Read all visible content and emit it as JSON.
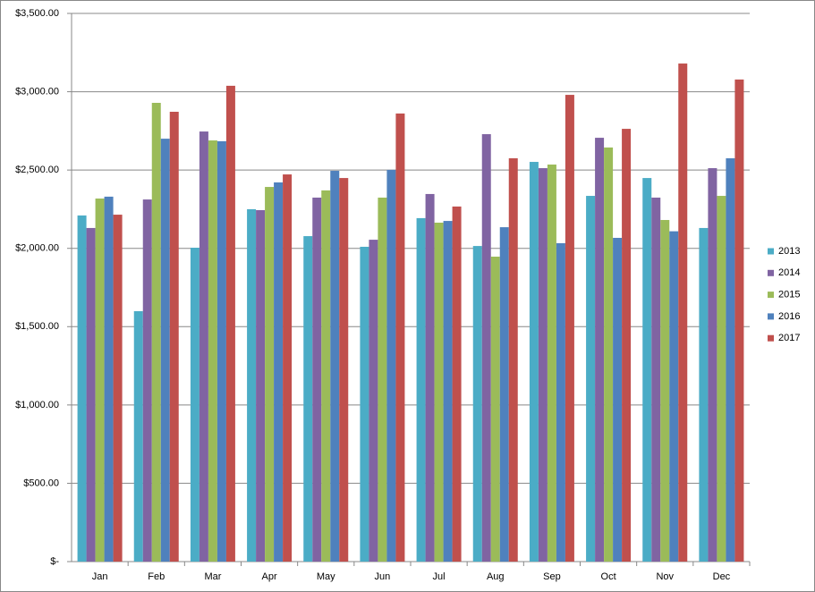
{
  "chart_data": {
    "type": "bar",
    "categories": [
      "Jan",
      "Feb",
      "Mar",
      "Apr",
      "May",
      "Jun",
      "Jul",
      "Aug",
      "Sep",
      "Oct",
      "Nov",
      "Dec"
    ],
    "series": [
      {
        "name": "2013",
        "color": "#4bacc6",
        "values": [
          2210,
          1599,
          2004,
          2250,
          2078,
          2010,
          2193,
          2015,
          2552,
          2335,
          2449,
          2130
        ]
      },
      {
        "name": "2014",
        "color": "#8064a2",
        "values": [
          2130,
          2312,
          2746,
          2244,
          2324,
          2055,
          2347,
          2729,
          2512,
          2706,
          2324,
          2512
        ]
      },
      {
        "name": "2015",
        "color": "#9bbb59",
        "values": [
          2318,
          2929,
          2689,
          2392,
          2370,
          2324,
          2164,
          1947,
          2535,
          2644,
          2181,
          2335
        ]
      },
      {
        "name": "2016",
        "color": "#4f81bd",
        "values": [
          2330,
          2700,
          2684,
          2421,
          2495,
          2501,
          2175,
          2135,
          2033,
          2067,
          2109,
          2575
        ]
      },
      {
        "name": "2017",
        "color": "#c0504d",
        "values": [
          2215,
          2872,
          3038,
          2472,
          2449,
          2861,
          2267,
          2575,
          2980,
          2763,
          3180,
          3078
        ]
      }
    ],
    "ylim": [
      0,
      3500
    ],
    "yticks": [
      {
        "value": 0,
        "label": "$-"
      },
      {
        "value": 500,
        "label": "$500.00"
      },
      {
        "value": 1000,
        "label": "$1,000.00"
      },
      {
        "value": 1500,
        "label": "$1,500.00"
      },
      {
        "value": 2000,
        "label": "$2,000.00"
      },
      {
        "value": 2500,
        "label": "$2,500.00"
      },
      {
        "value": 3000,
        "label": "$3,000.00"
      },
      {
        "value": 3500,
        "label": "$3,500.00"
      }
    ],
    "grid": true,
    "legend": "right"
  }
}
